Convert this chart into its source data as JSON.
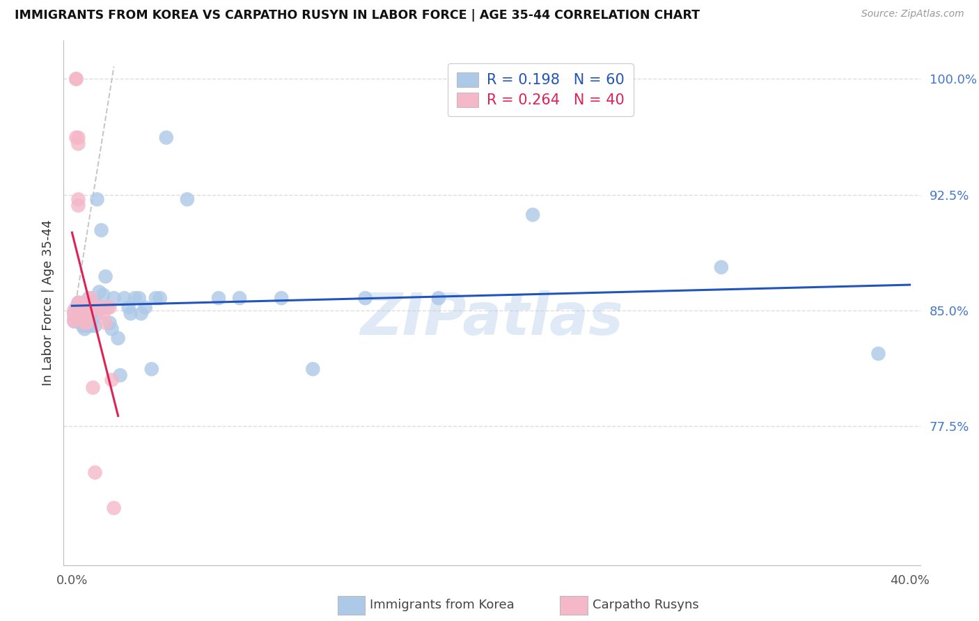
{
  "title": "IMMIGRANTS FROM KOREA VS CARPATHO RUSYN IN LABOR FORCE | AGE 35-44 CORRELATION CHART",
  "source": "Source: ZipAtlas.com",
  "ylabel": "In Labor Force | Age 35-44",
  "xlim": [
    -0.004,
    0.405
  ],
  "ylim": [
    0.685,
    1.025
  ],
  "yticks": [
    0.775,
    0.85,
    0.925,
    1.0
  ],
  "ytick_labels": [
    "77.5%",
    "85.0%",
    "92.5%",
    "100.0%"
  ],
  "xtick_vals": [
    0.0,
    0.4
  ],
  "xtick_labels": [
    "0.0%",
    "40.0%"
  ],
  "korea_R": "0.198",
  "korea_N": "60",
  "rusyn_R": "0.264",
  "rusyn_N": "40",
  "korea_dot_color": "#adc9e8",
  "rusyn_dot_color": "#f4b8c8",
  "korea_line_color": "#2255bb",
  "rusyn_line_color": "#dd2255",
  "diag_color": "#cccccc",
  "grid_color": "#dddddd",
  "watermark": "ZIPatlas",
  "korea_x": [
    0.001,
    0.001,
    0.002,
    0.003,
    0.003,
    0.004,
    0.004,
    0.005,
    0.005,
    0.005,
    0.006,
    0.006,
    0.006,
    0.006,
    0.007,
    0.007,
    0.007,
    0.008,
    0.008,
    0.008,
    0.009,
    0.009,
    0.009,
    0.01,
    0.01,
    0.011,
    0.011,
    0.012,
    0.013,
    0.013,
    0.014,
    0.015,
    0.016,
    0.017,
    0.018,
    0.019,
    0.02,
    0.022,
    0.023,
    0.025,
    0.027,
    0.028,
    0.03,
    0.032,
    0.033,
    0.035,
    0.038,
    0.04,
    0.042,
    0.045,
    0.055,
    0.07,
    0.08,
    0.1,
    0.115,
    0.14,
    0.175,
    0.22,
    0.31,
    0.385
  ],
  "korea_y": [
    0.848,
    0.843,
    0.852,
    0.855,
    0.848,
    0.848,
    0.843,
    0.85,
    0.845,
    0.84,
    0.848,
    0.845,
    0.842,
    0.838,
    0.85,
    0.845,
    0.84,
    0.858,
    0.848,
    0.843,
    0.855,
    0.848,
    0.84,
    0.852,
    0.845,
    0.855,
    0.84,
    0.922,
    0.862,
    0.85,
    0.902,
    0.86,
    0.872,
    0.852,
    0.842,
    0.838,
    0.858,
    0.832,
    0.808,
    0.858,
    0.852,
    0.848,
    0.858,
    0.858,
    0.848,
    0.852,
    0.812,
    0.858,
    0.858,
    0.962,
    0.922,
    0.858,
    0.858,
    0.858,
    0.812,
    0.858,
    0.858,
    0.912,
    0.878,
    0.822
  ],
  "rusyn_x": [
    0.001,
    0.001,
    0.001,
    0.001,
    0.002,
    0.002,
    0.002,
    0.003,
    0.003,
    0.003,
    0.003,
    0.003,
    0.004,
    0.004,
    0.004,
    0.004,
    0.005,
    0.005,
    0.005,
    0.006,
    0.006,
    0.006,
    0.007,
    0.007,
    0.007,
    0.008,
    0.008,
    0.009,
    0.01,
    0.01,
    0.011,
    0.012,
    0.013,
    0.014,
    0.015,
    0.016,
    0.017,
    0.018,
    0.019,
    0.02
  ],
  "rusyn_y": [
    0.85,
    0.848,
    0.845,
    0.843,
    1.0,
    1.0,
    0.962,
    0.962,
    0.958,
    0.922,
    0.918,
    0.855,
    0.855,
    0.852,
    0.848,
    0.845,
    0.852,
    0.848,
    0.845,
    0.852,
    0.848,
    0.842,
    0.852,
    0.848,
    0.842,
    0.855,
    0.848,
    0.858,
    0.852,
    0.8,
    0.745,
    0.852,
    0.852,
    0.852,
    0.848,
    0.842,
    0.852,
    0.852,
    0.805,
    0.722
  ],
  "background_color": "#ffffff"
}
